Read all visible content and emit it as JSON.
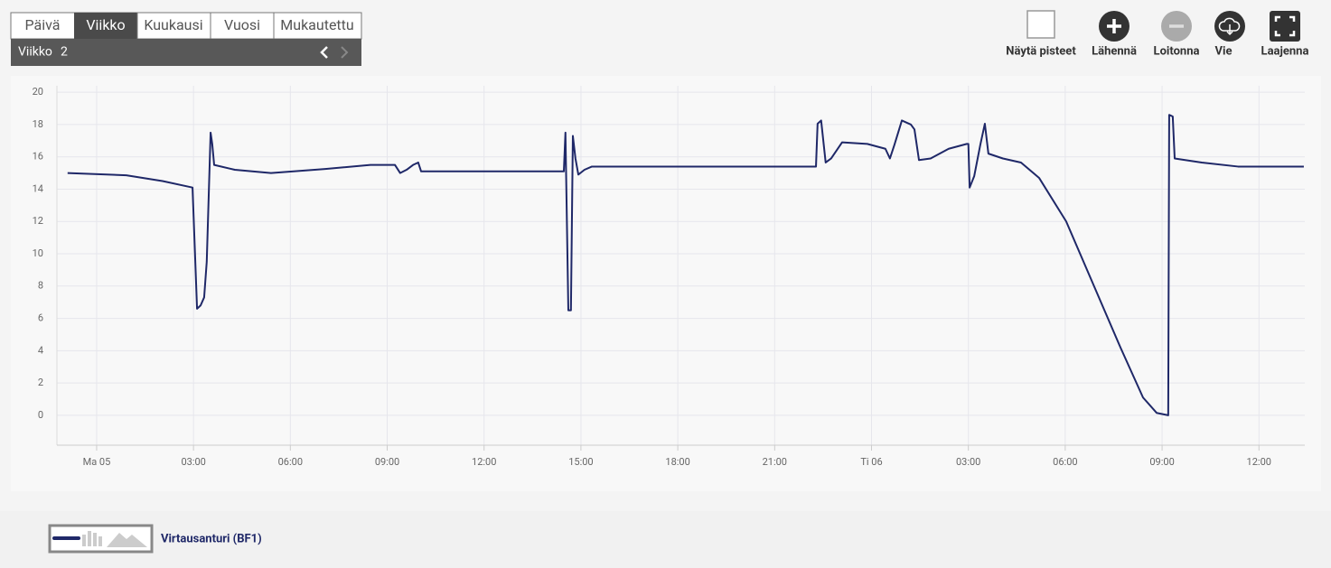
{
  "tabs": [
    "Päivä",
    "Viikko",
    "Kuukausi",
    "Vuosi",
    "Mukautettu"
  ],
  "period": {
    "label": "Viikko",
    "number": 2
  },
  "toolbar": [
    "Näytä pisteet",
    "Lähennä",
    "Loitonna",
    "Vie",
    "Laajenna"
  ],
  "chart_data": {
    "type": "line",
    "x": [
      -0.9,
      0.92,
      2.04,
      2.97,
      3.11,
      3.22,
      3.33,
      3.41,
      3.53,
      3.58,
      3.64,
      4.28,
      5.4,
      7.08,
      8.48,
      9.24,
      9.4,
      9.6,
      9.8,
      9.96,
      10.05,
      14.47,
      14.52,
      14.61,
      14.69,
      14.75,
      14.83,
      14.92,
      15.11,
      15.34,
      22.28,
      22.33,
      22.44,
      22.58,
      22.75,
      23.09,
      23.87,
      24.43,
      24.57,
      24.71,
      24.94,
      25.22,
      25.33,
      25.47,
      25.83,
      26.39,
      26.95,
      27.0,
      27.04,
      27.18,
      27.37,
      27.51,
      27.62,
      28.07,
      28.63,
      29.19,
      30.03,
      30.87,
      31.71,
      32.41,
      32.83,
      33.19,
      33.22,
      33.33,
      33.39,
      34.23,
      35.35,
      37.39
    ],
    "series": [
      {
        "name": "Virtausanturi (BF1)",
        "color": "#1f2868",
        "values": [
          15.0,
          14.86,
          14.5,
          14.1,
          6.6,
          6.8,
          7.3,
          9.5,
          17.5,
          16.8,
          15.5,
          15.2,
          15.0,
          15.25,
          15.5,
          15.5,
          15.0,
          15.2,
          15.5,
          15.65,
          15.1,
          15.1,
          17.5,
          6.5,
          6.5,
          17.3,
          15.9,
          14.9,
          15.2,
          15.4,
          15.4,
          18.05,
          18.25,
          15.65,
          15.9,
          16.9,
          16.8,
          16.5,
          15.9,
          16.75,
          18.25,
          18.0,
          17.7,
          15.8,
          15.9,
          16.5,
          16.8,
          16.8,
          14.1,
          14.8,
          16.75,
          18.05,
          16.2,
          15.9,
          15.65,
          14.7,
          12.0,
          8.1,
          4.2,
          1.1,
          0.15,
          0.0,
          18.6,
          18.5,
          15.9,
          15.65,
          15.4,
          15.4
        ]
      }
    ],
    "xlim": [
      -1.23,
      37.42
    ],
    "xticks": [
      {
        "value": 0,
        "label": "Ma 05"
      },
      {
        "value": 3,
        "label": "03:00"
      },
      {
        "value": 6,
        "label": "06:00"
      },
      {
        "value": 9,
        "label": "09:00"
      },
      {
        "value": 12,
        "label": "12:00"
      },
      {
        "value": 15,
        "label": "15:00"
      },
      {
        "value": 18,
        "label": "18:00"
      },
      {
        "value": 21,
        "label": "21:00"
      },
      {
        "value": 24,
        "label": "Ti 06"
      },
      {
        "value": 27,
        "label": "03:00"
      },
      {
        "value": 30,
        "label": "06:00"
      },
      {
        "value": 33,
        "label": "09:00"
      },
      {
        "value": 36,
        "label": "12:00"
      }
    ],
    "ylim": [
      -1.85,
      20.4
    ],
    "yticks": [
      0,
      2,
      4,
      6,
      8,
      10,
      12,
      14,
      16,
      18,
      20
    ],
    "grid": true
  }
}
